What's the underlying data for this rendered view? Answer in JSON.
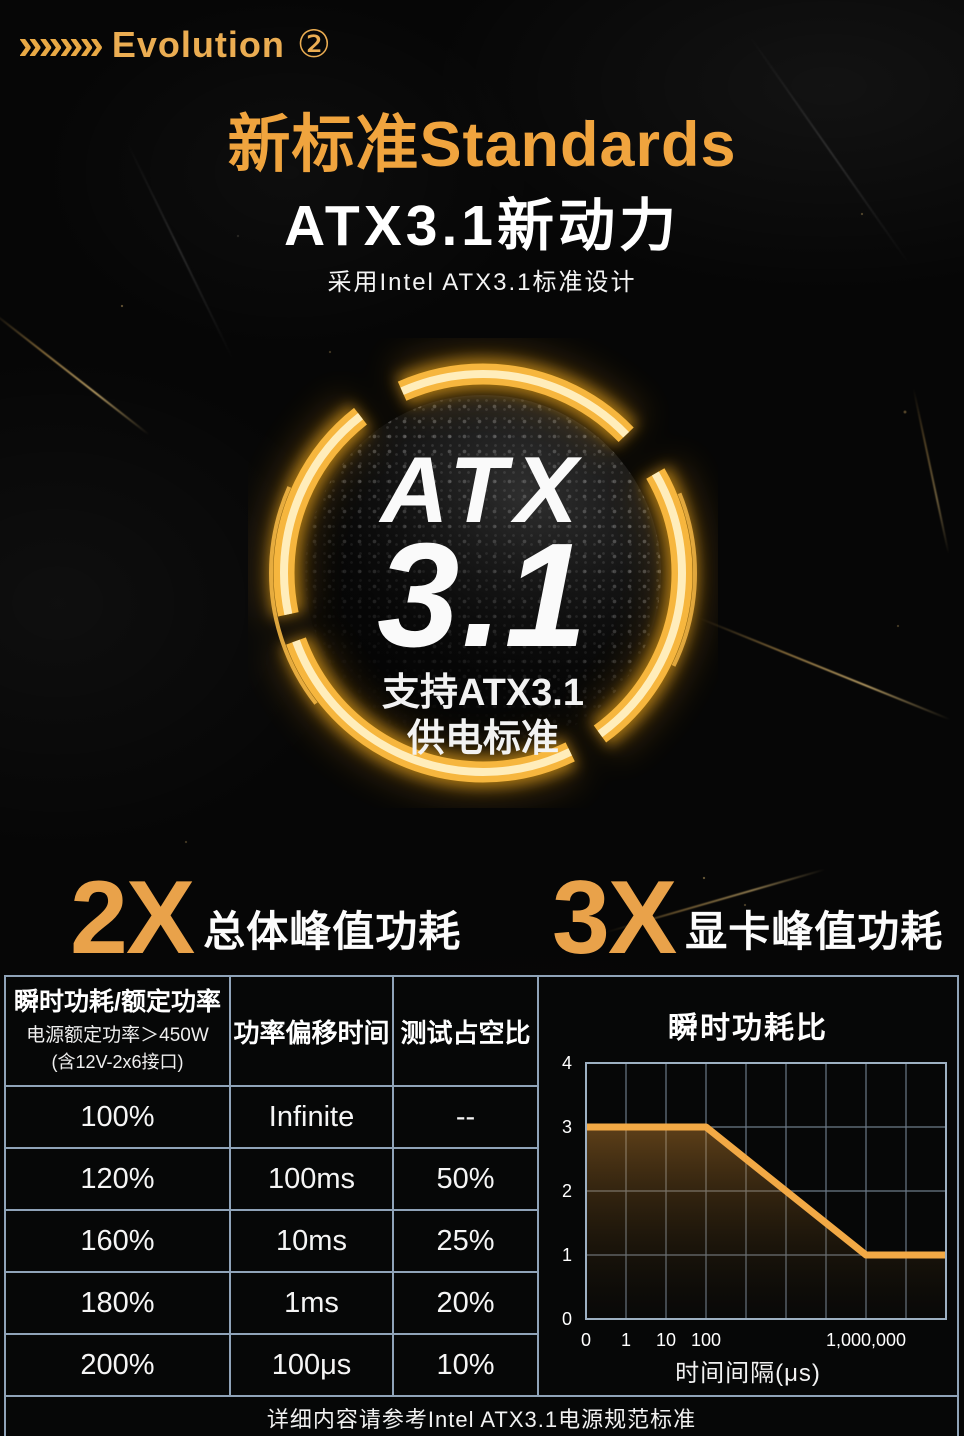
{
  "header": {
    "chevrons": "»»»»",
    "label": "Evolution",
    "number": "②"
  },
  "hero": {
    "title_gold": "新标准Standards",
    "title_white": "ATX3.1新动力",
    "subtitle": "采用Intel ATX3.1标准设计"
  },
  "badge": {
    "line1": "ATX",
    "line2": "3.1",
    "line3": "支持ATX3.1",
    "line4": "供电标准"
  },
  "multipliers": [
    {
      "factor": "2X",
      "label": "总体峰值功耗"
    },
    {
      "factor": "3X",
      "label": "显卡峰值功耗"
    }
  ],
  "table": {
    "col1_title": "瞬时功耗/额定功率",
    "col1_sub1": "电源额定功率＞450W",
    "col1_sub2": "(含12V-2x6接口)",
    "col2_title": "功率偏移时间",
    "col3_title": "测试占空比",
    "rows": [
      [
        "100%",
        "Infinite",
        "--"
      ],
      [
        "120%",
        "100ms",
        "50%"
      ],
      [
        "160%",
        "10ms",
        "25%"
      ],
      [
        "180%",
        "1ms",
        "20%"
      ],
      [
        "200%",
        "100μs",
        "10%"
      ]
    ]
  },
  "chart_data": {
    "type": "line",
    "title": "瞬时功耗比",
    "xlabel": "时间间隔(μs)",
    "ylabel": "",
    "ylim": [
      0,
      4
    ],
    "yticks": [
      0,
      1,
      2,
      3,
      4
    ],
    "x_gridline_count": 9,
    "xticks": [
      {
        "label": "0",
        "col": 0
      },
      {
        "label": "1",
        "col": 1
      },
      {
        "label": "10",
        "col": 2
      },
      {
        "label": "100",
        "col": 3
      },
      {
        "label": "1,000,000",
        "col": 7
      }
    ],
    "series": [
      {
        "name": "瞬时功耗比",
        "points_grid": [
          {
            "col": 0,
            "y": 3
          },
          {
            "col": 3,
            "y": 3
          },
          {
            "col": 7,
            "y": 1
          },
          {
            "col": 9,
            "y": 1
          }
        ],
        "description": "3x until 100μs, linear decline to 1x at 1,000,000μs, flat afterwards"
      }
    ],
    "grid": true,
    "legend": false,
    "line_color": "#F2A945",
    "grid_color": "#6C7A88",
    "axis_color": "#9DB0C2"
  },
  "footer": {
    "note": "详细内容请参考Intel ATX3.1电源规范标准"
  },
  "colors": {
    "headline_gold": "#F0A43E",
    "multiplier_gold": "#E9A24A",
    "ring_gold": "#F6B63E",
    "table_border": "#8FA3B8",
    "background": "#060606"
  }
}
